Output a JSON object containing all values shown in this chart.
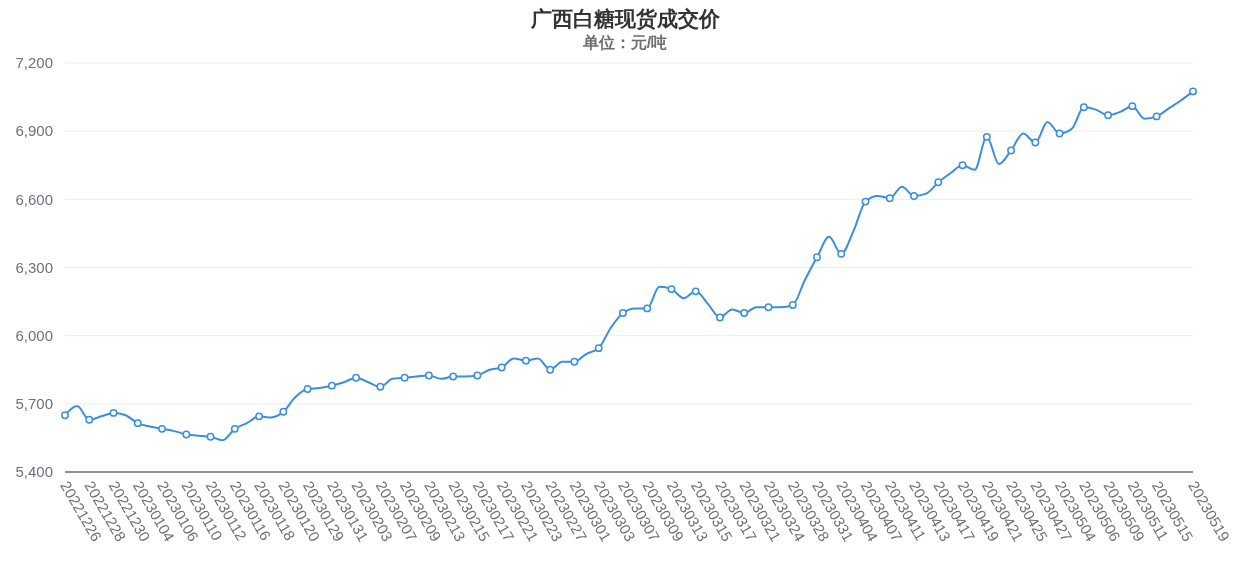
{
  "chart_data": {
    "type": "line",
    "title": "广西白糖现货成交价",
    "subtitle": "单位：元/吨",
    "categories": [
      "20221226",
      null,
      "20221228",
      null,
      "20221230",
      null,
      "20230104",
      null,
      "20230106",
      null,
      "20230110",
      null,
      "20230112",
      null,
      "20230116",
      null,
      "20230118",
      null,
      "20230120",
      null,
      "20230129",
      null,
      "20230131",
      null,
      "20230203",
      null,
      "20230207",
      null,
      "20230209",
      null,
      "20230213",
      null,
      "20230215",
      null,
      "20230217",
      null,
      "20230221",
      null,
      "20230223",
      null,
      "20230227",
      null,
      "20230301",
      null,
      "20230303",
      null,
      "20230307",
      null,
      "20230309",
      null,
      "20230313",
      null,
      "20230315",
      null,
      "20230317",
      null,
      "20230321",
      null,
      "20230324",
      null,
      "20230328",
      null,
      "20230331",
      null,
      "20230404",
      null,
      "20230407",
      null,
      "20230411",
      null,
      "20230413",
      null,
      "20230417",
      null,
      "20230419",
      null,
      "20230421",
      null,
      "20230425",
      null,
      "20230427",
      null,
      "20230504",
      null,
      "20230506",
      null,
      "20230509",
      null,
      "20230511",
      null,
      "20230515",
      null,
      null,
      "20230519"
    ],
    "series": [
      {
        "color": "#3b8fd9",
        "values": [
          5650,
          5690,
          5630,
          5645,
          5660,
          5650,
          5615,
          5600,
          5590,
          5580,
          5565,
          5560,
          5555,
          5540,
          5590,
          5615,
          5645,
          5640,
          5665,
          5730,
          5765,
          5770,
          5780,
          5795,
          5815,
          5795,
          5775,
          5810,
          5815,
          5820,
          5825,
          5810,
          5820,
          5820,
          5825,
          5850,
          5860,
          5900,
          5890,
          5900,
          5850,
          5885,
          5885,
          5920,
          5945,
          6035,
          6100,
          6120,
          6120,
          6215,
          6205,
          6165,
          6195,
          6140,
          6080,
          6115,
          6100,
          6125,
          6125,
          6125,
          6135,
          6245,
          6345,
          6435,
          6360,
          6460,
          6590,
          6615,
          6605,
          6655,
          6615,
          6625,
          6675,
          6715,
          6750,
          6730,
          6875,
          6755,
          6815,
          6890,
          6850,
          6940,
          6890,
          6910,
          7005,
          6995,
          6970,
          6985,
          7010,
          6955,
          6965,
          7000,
          7035,
          7075
        ]
      }
    ],
    "ylim": [
      5400,
      7200
    ],
    "yticks": [
      {
        "value": 5400,
        "label": "5,400"
      },
      {
        "value": 5700,
        "label": "5,700"
      },
      {
        "value": 6000,
        "label": "6,000"
      },
      {
        "value": 6300,
        "label": "6,300"
      },
      {
        "value": 6600,
        "label": "6,600"
      },
      {
        "value": 6900,
        "label": "6,900"
      },
      {
        "value": 7200,
        "label": "7,200"
      }
    ],
    "grid": "y",
    "marker": "circle",
    "line_style": "solid"
  }
}
